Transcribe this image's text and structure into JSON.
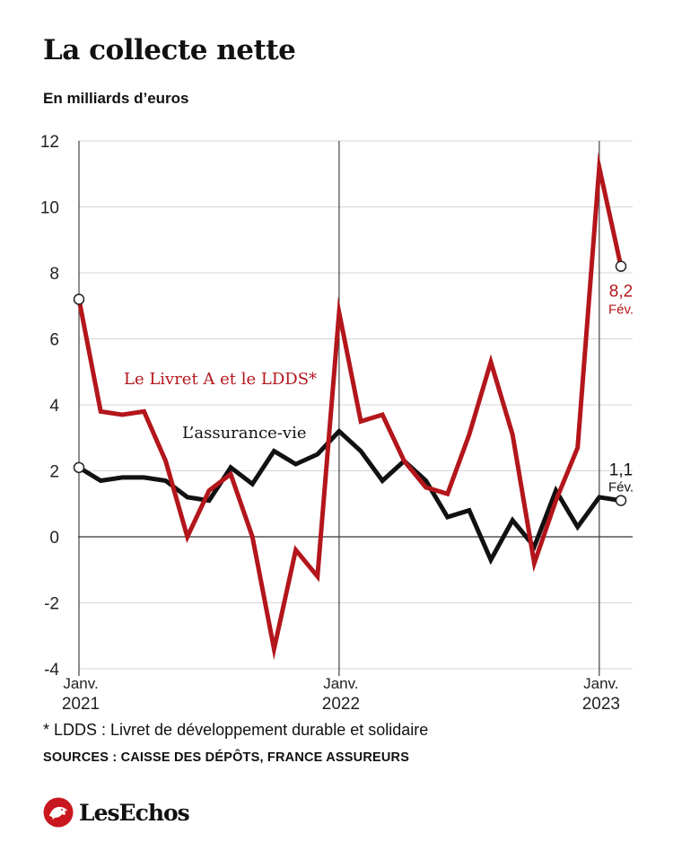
{
  "title": "La collecte nette",
  "subtitle": "En milliards d’euros",
  "chart_data": {
    "type": "line",
    "ylim": [
      -4,
      12
    ],
    "yticks": [
      "12",
      "10",
      "8",
      "6",
      "4",
      "2",
      "0",
      "-2",
      "-4"
    ],
    "yticks_values": [
      12,
      10,
      8,
      6,
      4,
      2,
      0,
      -2,
      -4
    ],
    "x_start": "2021-01",
    "x_end": "2023-02",
    "xticks": [
      {
        "month_index": 0,
        "line1": "Janv.",
        "line2": "2021"
      },
      {
        "month_index": 12,
        "line1": "Janv.",
        "line2": "2022"
      },
      {
        "month_index": 24,
        "line1": "Janv.",
        "line2": "2023"
      }
    ],
    "grid": true,
    "series": [
      {
        "name": "Le Livret A et le LDDS*",
        "color": "#b3161b",
        "values": [
          7.2,
          3.8,
          3.7,
          3.8,
          2.3,
          0.0,
          1.4,
          1.9,
          0.0,
          -3.4,
          -0.4,
          -1.2,
          6.8,
          3.5,
          3.7,
          2.3,
          1.5,
          1.3,
          3.1,
          5.3,
          3.1,
          -0.8,
          1.1,
          2.7,
          11.2,
          8.2
        ]
      },
      {
        "name": "L’assurance-vie",
        "color": "#111111",
        "values": [
          2.1,
          1.7,
          1.8,
          1.8,
          1.7,
          1.2,
          1.1,
          2.1,
          1.6,
          2.6,
          2.2,
          2.5,
          3.2,
          2.6,
          1.7,
          2.3,
          1.7,
          0.6,
          0.8,
          -0.7,
          0.5,
          -0.3,
          1.4,
          0.3,
          1.2,
          1.1
        ]
      }
    ],
    "annotations": [
      {
        "series": 0,
        "value": "8,2",
        "month": "Fév."
      },
      {
        "series": 1,
        "value": "1,1",
        "month": "Fév."
      }
    ]
  },
  "footnote": "* LDDS : Livret de développement durable et solidaire",
  "sources": "SOURCES : CAISSE DES DÉPÔTS, FRANCE ASSUREURS",
  "logo": {
    "text": "LesEchos",
    "icon": "les-echos-lion-icon",
    "color": "#c8171e"
  }
}
